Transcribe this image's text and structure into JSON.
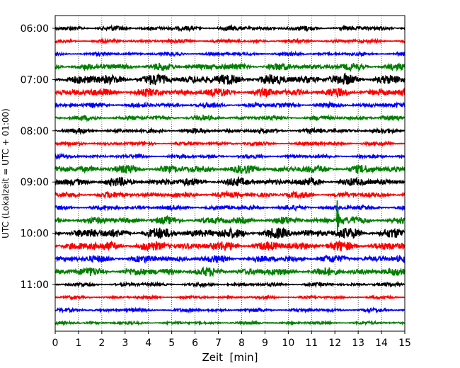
{
  "chart_data": {
    "type": "line",
    "title": "",
    "xlabel": "Zeit  [min]",
    "ylabel": "UTC (Lokalzeit = UTC + 01:00)",
    "xlim": [
      0,
      15
    ],
    "x_ticks": [
      0,
      1,
      2,
      3,
      4,
      5,
      6,
      7,
      8,
      9,
      10,
      11,
      12,
      13,
      14,
      15
    ],
    "y_tick_labels": [
      "06:00",
      "07:00",
      "08:00",
      "09:00",
      "10:00",
      "11:00"
    ],
    "grid": "x",
    "trace_colors": [
      "#000000",
      "#ff0000",
      "#0000ff",
      "#008000"
    ],
    "traces": [
      {
        "start": "06:00",
        "color": "#000000",
        "amplitude": 0.2
      },
      {
        "start": "06:15",
        "color": "#ff0000",
        "amplitude": 0.15
      },
      {
        "start": "06:30",
        "color": "#0000ff",
        "amplitude": 0.15
      },
      {
        "start": "06:45",
        "color": "#008000",
        "amplitude": 0.3
      },
      {
        "start": "07:00",
        "color": "#000000",
        "amplitude": 0.45
      },
      {
        "start": "07:15",
        "color": "#ff0000",
        "amplitude": 0.35
      },
      {
        "start": "07:30",
        "color": "#0000ff",
        "amplitude": 0.2
      },
      {
        "start": "07:45",
        "color": "#008000",
        "amplitude": 0.2
      },
      {
        "start": "08:00",
        "color": "#000000",
        "amplitude": 0.2
      },
      {
        "start": "08:15",
        "color": "#ff0000",
        "amplitude": 0.15
      },
      {
        "start": "08:30",
        "color": "#0000ff",
        "amplitude": 0.15
      },
      {
        "start": "08:45",
        "color": "#008000",
        "amplitude": 0.35
      },
      {
        "start": "09:00",
        "color": "#000000",
        "amplitude": 0.35
      },
      {
        "start": "09:15",
        "color": "#ff0000",
        "amplitude": 0.25
      },
      {
        "start": "09:30",
        "color": "#0000ff",
        "amplitude": 0.2
      },
      {
        "start": "09:45",
        "color": "#008000",
        "amplitude": 0.3,
        "event_min": 12.1
      },
      {
        "start": "10:00",
        "color": "#000000",
        "amplitude": 0.45
      },
      {
        "start": "10:15",
        "color": "#ff0000",
        "amplitude": 0.4
      },
      {
        "start": "10:30",
        "color": "#0000ff",
        "amplitude": 0.3
      },
      {
        "start": "10:45",
        "color": "#008000",
        "amplitude": 0.35
      },
      {
        "start": "11:00",
        "color": "#000000",
        "amplitude": 0.15
      },
      {
        "start": "11:15",
        "color": "#ff0000",
        "amplitude": 0.12
      },
      {
        "start": "11:30",
        "color": "#0000ff",
        "amplitude": 0.15
      },
      {
        "start": "11:45",
        "color": "#008000",
        "amplitude": 0.12
      }
    ]
  }
}
